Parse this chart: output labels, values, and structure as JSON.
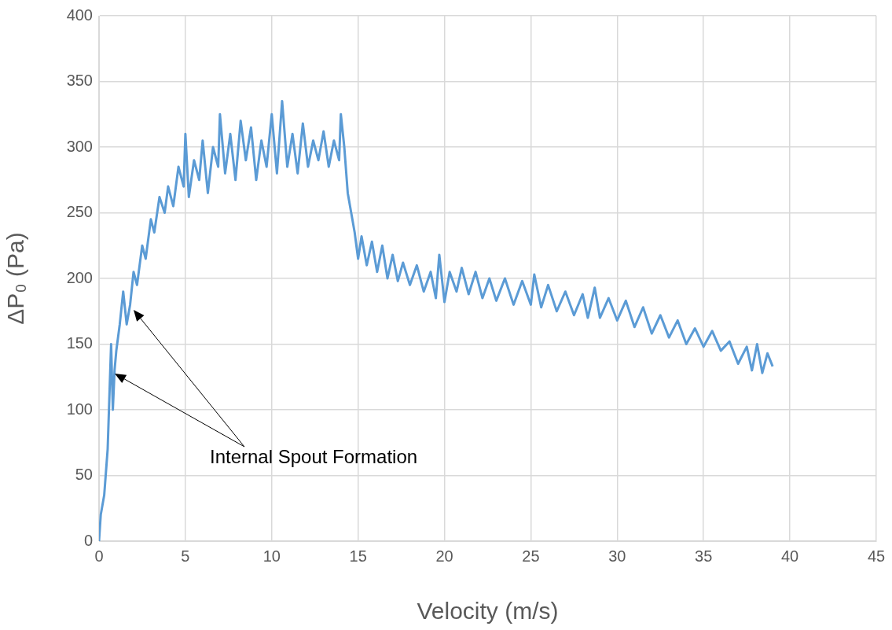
{
  "chart_data": {
    "type": "line",
    "xlabel": "Velocity (m/s)",
    "ylabel": "ΔP₀ (Pa)",
    "annotations": [
      "Internal Spout Formation"
    ],
    "xlim": [
      0,
      45
    ],
    "xticks": [
      0,
      5,
      10,
      15,
      20,
      25,
      30,
      35,
      40,
      45
    ],
    "ylim": [
      0,
      400
    ],
    "yticks": [
      0,
      50,
      100,
      150,
      200,
      250,
      300,
      350,
      400
    ],
    "grid": true,
    "legend": false,
    "marker": "none",
    "line_style": "solid",
    "series": [
      {
        "color": "#5b9bd5",
        "x": [
          0,
          0.1,
          0.3,
          0.5,
          0.6,
          0.7,
          0.8,
          0.9,
          1.0,
          1.2,
          1.4,
          1.6,
          1.8,
          2.0,
          2.2,
          2.5,
          2.7,
          3.0,
          3.2,
          3.5,
          3.8,
          4.0,
          4.3,
          4.6,
          4.9,
          5.0,
          5.2,
          5.5,
          5.8,
          6.0,
          6.3,
          6.6,
          6.9,
          7.0,
          7.3,
          7.6,
          7.9,
          8.2,
          8.5,
          8.8,
          9.1,
          9.4,
          9.7,
          10.0,
          10.3,
          10.6,
          10.9,
          11.2,
          11.5,
          11.8,
          12.1,
          12.4,
          12.7,
          13.0,
          13.3,
          13.6,
          13.9,
          14.0,
          14.2,
          14.4,
          14.6,
          14.8,
          15.0,
          15.2,
          15.5,
          15.8,
          16.1,
          16.4,
          16.7,
          17.0,
          17.3,
          17.6,
          18.0,
          18.4,
          18.8,
          19.2,
          19.5,
          19.7,
          20.0,
          20.3,
          20.7,
          21.0,
          21.4,
          21.8,
          22.2,
          22.6,
          23.0,
          23.5,
          24.0,
          24.5,
          25.0,
          25.2,
          25.6,
          26.0,
          26.5,
          27.0,
          27.5,
          28.0,
          28.3,
          28.7,
          29.0,
          29.5,
          30.0,
          30.5,
          31.0,
          31.5,
          32.0,
          32.5,
          33.0,
          33.5,
          34.0,
          34.5,
          35.0,
          35.5,
          36.0,
          36.5,
          37.0,
          37.5,
          37.8,
          38.1,
          38.4,
          38.7,
          39.0
        ],
        "values": [
          0,
          20,
          35,
          70,
          110,
          150,
          100,
          130,
          145,
          165,
          190,
          165,
          180,
          205,
          195,
          225,
          215,
          245,
          235,
          262,
          250,
          270,
          255,
          285,
          270,
          310,
          262,
          290,
          275,
          305,
          265,
          300,
          285,
          325,
          280,
          310,
          275,
          320,
          290,
          315,
          275,
          305,
          285,
          325,
          280,
          335,
          285,
          310,
          280,
          318,
          285,
          305,
          290,
          312,
          285,
          305,
          290,
          325,
          300,
          265,
          250,
          235,
          215,
          232,
          210,
          228,
          205,
          225,
          200,
          218,
          198,
          212,
          195,
          210,
          190,
          205,
          185,
          218,
          182,
          205,
          190,
          208,
          188,
          205,
          185,
          200,
          183,
          200,
          180,
          198,
          180,
          203,
          178,
          195,
          175,
          190,
          172,
          188,
          170,
          193,
          170,
          185,
          168,
          183,
          163,
          178,
          158,
          172,
          155,
          168,
          150,
          162,
          148,
          160,
          145,
          152,
          135,
          148,
          130,
          150,
          128,
          143,
          133
        ]
      }
    ]
  }
}
